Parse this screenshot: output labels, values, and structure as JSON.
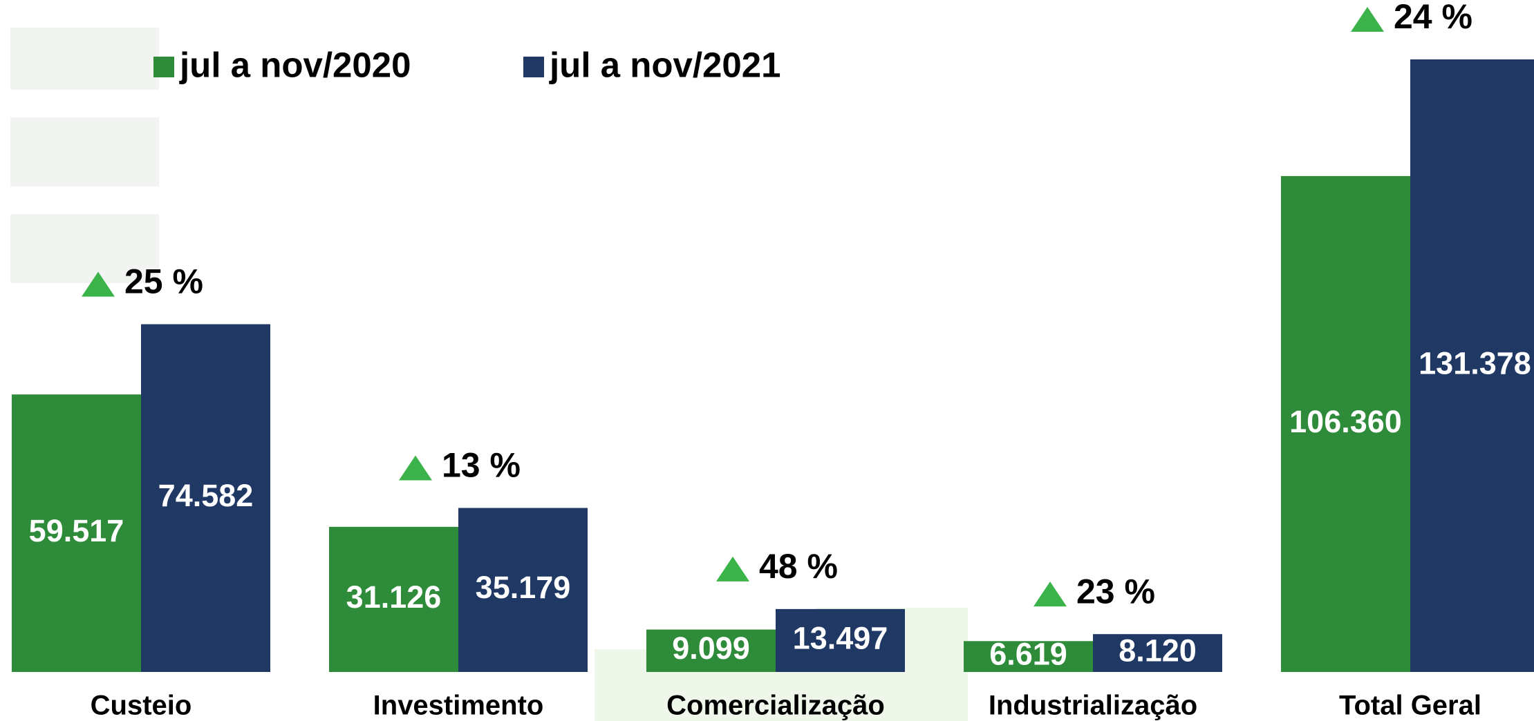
{
  "chart_data": {
    "type": "bar",
    "categories": [
      "Custeio",
      "Investimento",
      "Comercialização",
      "Industrialização",
      "Total Geral"
    ],
    "series": [
      {
        "name": "jul a nov/2020",
        "color": "#2e8b3a",
        "values": [
          59517,
          31126,
          9099,
          6619,
          106360
        ],
        "value_labels": [
          "59.517",
          "31.126",
          "9.099",
          "6.619",
          "106.360"
        ]
      },
      {
        "name": "jul a nov/2021",
        "color": "#203864",
        "values": [
          74582,
          35179,
          13497,
          8120,
          131378
        ],
        "value_labels": [
          "74.582",
          "35.179",
          "13.497",
          "8.120",
          "131.378"
        ]
      }
    ],
    "annotations": [
      "25 %",
      "13 %",
      "48 %",
      "23 %",
      "24 %"
    ],
    "annotation_color": "#3cb34a"
  }
}
